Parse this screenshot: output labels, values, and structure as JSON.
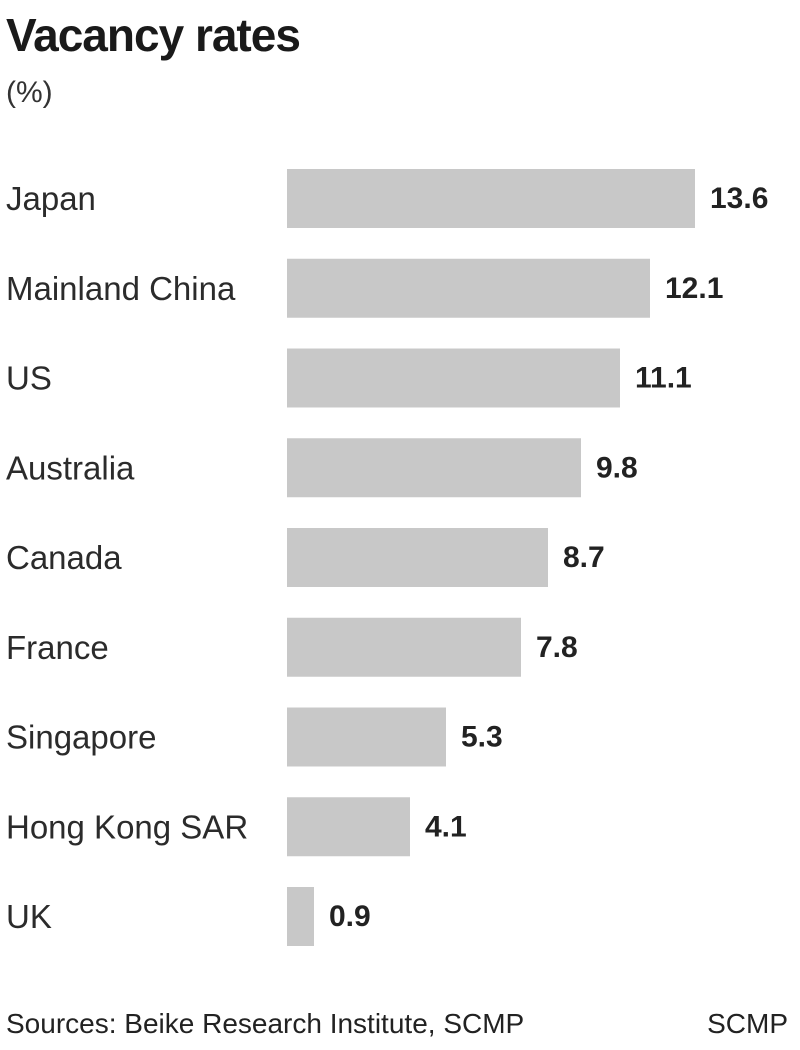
{
  "chart_data": {
    "type": "bar",
    "orientation": "horizontal",
    "title": "Vacancy rates",
    "subtitle": "(%)",
    "categories": [
      "Japan",
      "Mainland China",
      "US",
      "Australia",
      "Canada",
      "France",
      "Singapore",
      "Hong Kong SAR",
      "UK"
    ],
    "values": [
      13.6,
      12.1,
      11.1,
      9.8,
      8.7,
      7.8,
      5.3,
      4.1,
      0.9
    ],
    "value_labels": [
      "13.6",
      "12.1",
      "11.1",
      "9.8",
      "8.7",
      "7.8",
      "5.3",
      "4.1",
      "0.9"
    ],
    "xlim": [
      0,
      13.6
    ],
    "bar_color": "#c8c8c8",
    "grid": false,
    "legend": "none"
  },
  "footer": {
    "source": "Sources: Beike Research Institute, SCMP",
    "brand": "SCMP"
  }
}
